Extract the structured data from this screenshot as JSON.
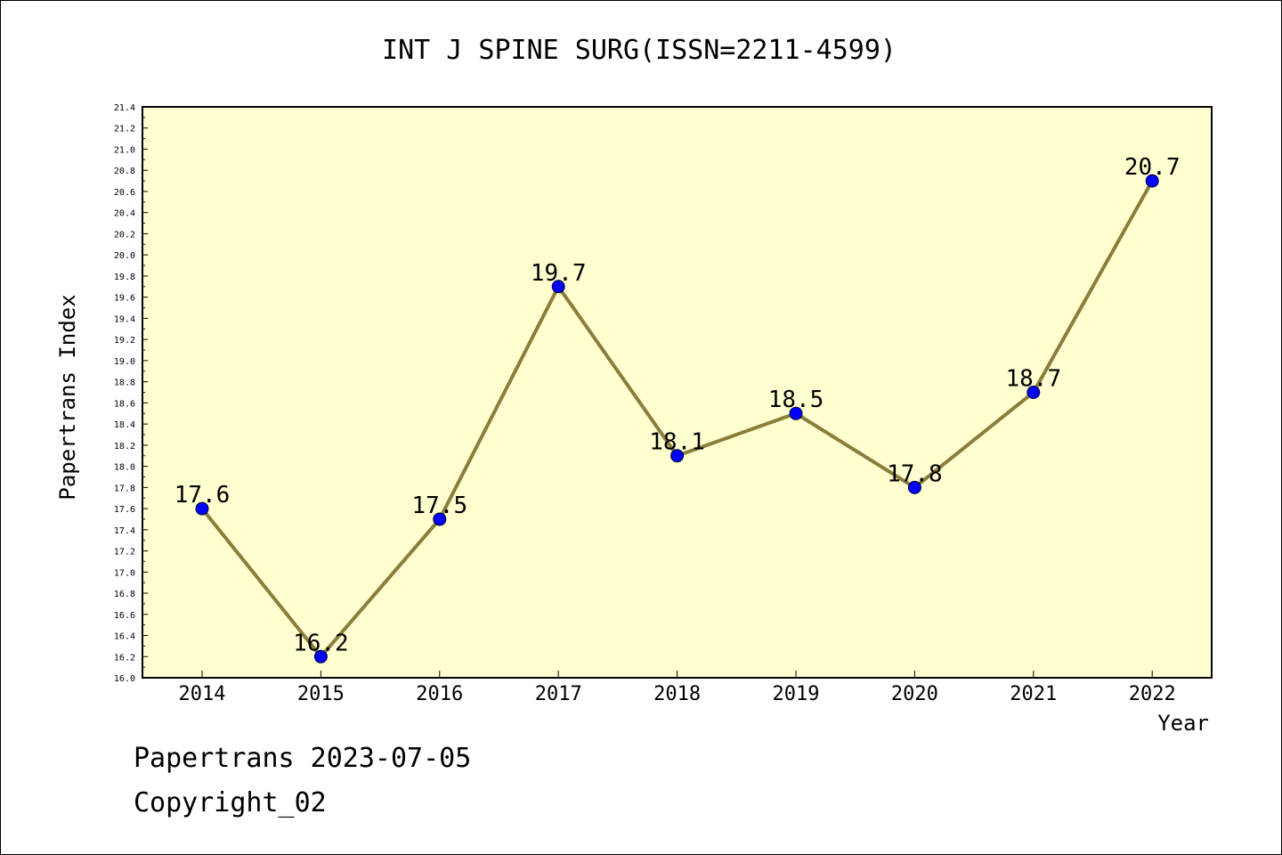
{
  "chart_data": {
    "type": "line",
    "title": "INT J SPINE SURG(ISSN=2211-4599)",
    "xlabel": "Year",
    "ylabel": "Papertrans Index",
    "categories": [
      "2014",
      "2015",
      "2016",
      "2017",
      "2018",
      "2019",
      "2020",
      "2021",
      "2022"
    ],
    "values": [
      17.6,
      16.2,
      17.5,
      19.7,
      18.1,
      18.5,
      17.8,
      18.7,
      20.7
    ],
    "data_labels": [
      "17.6",
      "16.2",
      "17.5",
      "19.7",
      "18.1",
      "18.5",
      "17.8",
      "18.7",
      "20.7"
    ],
    "ylim": [
      16.0,
      21.4
    ],
    "yticks": [
      "16.0",
      "16.2",
      "16.4",
      "16.6",
      "16.8",
      "17.0",
      "17.2",
      "17.4",
      "17.6",
      "17.8",
      "18.0",
      "18.2",
      "18.4",
      "18.6",
      "18.8",
      "19.0",
      "19.2",
      "19.4",
      "19.6",
      "19.8",
      "20.0",
      "20.2",
      "20.4",
      "20.6",
      "20.8",
      "21.0",
      "21.2",
      "21.4"
    ],
    "grid": false,
    "colors": {
      "plot_background": "#ffffd0",
      "line": "#8b7d3a",
      "marker": "#0000ff"
    }
  },
  "footer": {
    "date_line": "Papertrans 2023-07-05",
    "copyright": "Copyright_02"
  }
}
